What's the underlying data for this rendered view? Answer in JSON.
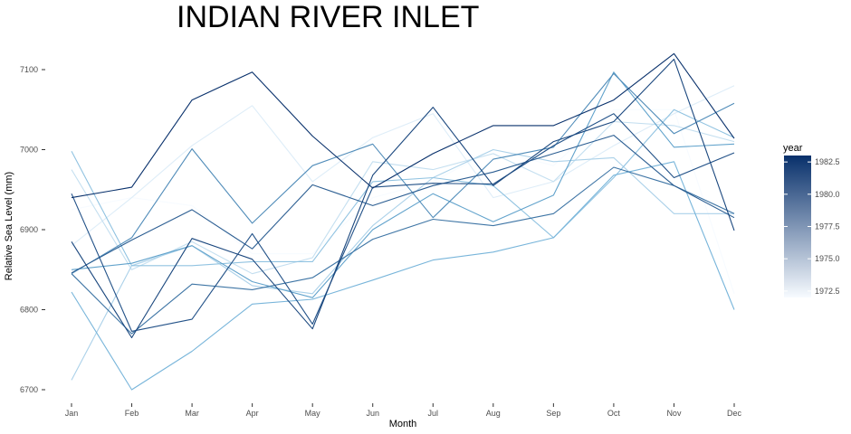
{
  "chart_data": {
    "type": "line",
    "title": "INDIAN RIVER INLET",
    "xlabel": "Month",
    "ylabel": "Relative Sea Level (mm)",
    "categories": [
      "Jan",
      "Feb",
      "Mar",
      "Apr",
      "May",
      "Jun",
      "Jul",
      "Aug",
      "Sep",
      "Oct",
      "Nov",
      "Dec"
    ],
    "y_ticks": [
      "6700",
      "6800",
      "6900",
      "7000",
      "7100"
    ],
    "ylim": [
      6685,
      7130
    ],
    "grid": false,
    "legend": {
      "title": "year",
      "position": "right",
      "range": [
        1972,
        1983
      ],
      "ticks": [
        "1972.5",
        "1975.0",
        "1977.5",
        "1980.0",
        "1982.5"
      ],
      "color_low": "#f7fbff",
      "color_high": "#08306b"
    },
    "series": [
      {
        "year": 1972,
        "values": [
          6925,
          6940,
          6930,
          6870,
          6870,
          6940,
          6960,
          7000,
          6980,
          7050,
          7050,
          6820
        ]
      },
      {
        "year": 1973,
        "values": [
          6880,
          6940,
          7005,
          7055,
          6960,
          7015,
          7045,
          6940,
          6960,
          7005,
          7045,
          7080
        ]
      },
      {
        "year": 1974,
        "values": [
          6975,
          6850,
          6885,
          6845,
          6865,
          6985,
          6975,
          6995,
          6960,
          7035,
          7030,
          7010
        ]
      },
      {
        "year": 1975,
        "values": [
          6712,
          6855,
          6880,
          6830,
          6820,
          6905,
          6965,
          7000,
          6985,
          6990,
          6920,
          6920
        ]
      },
      {
        "year": 1976,
        "values": [
          6998,
          6855,
          6855,
          6860,
          6860,
          6960,
          6965,
          6955,
          6890,
          6965,
          7050,
          7015
        ]
      },
      {
        "year": 1977,
        "values": [
          6822,
          6700,
          6748,
          6807,
          6813,
          6837,
          6862,
          6872,
          6890,
          6968,
          6985,
          6800
        ]
      },
      {
        "year": 1978,
        "values": [
          6850,
          6858,
          6880,
          6835,
          6815,
          6900,
          6945,
          6910,
          6943,
          7097,
          7003,
          7007
        ]
      },
      {
        "year": 1979,
        "values": [
          6845,
          6890,
          7001,
          6908,
          6980,
          7007,
          6915,
          6988,
          7003,
          7095,
          7020,
          7058
        ]
      },
      {
        "year": 1980,
        "values": [
          6845,
          6770,
          6832,
          6825,
          6840,
          6888,
          6913,
          6905,
          6920,
          6978,
          6955,
          6920
        ]
      },
      {
        "year": 1981,
        "values": [
          6846,
          6887,
          6925,
          6876,
          6956,
          6930,
          6955,
          6972,
          6995,
          7018,
          6955,
          6915
        ]
      },
      {
        "year": 1981.5,
        "values": [
          6945,
          6773,
          6788,
          6895,
          6782,
          6953,
          6958,
          6957,
          7005,
          7045,
          6965,
          6996
        ]
      },
      {
        "year": 1982,
        "values": [
          6885,
          6765,
          6889,
          6863,
          6776,
          6968,
          7053,
          6955,
          7010,
          7035,
          7113,
          6899
        ]
      },
      {
        "year": 1983,
        "values": [
          6940,
          6953,
          7062,
          7097,
          7017,
          6952,
          6995,
          7030,
          7030,
          7062,
          7120,
          7014
        ]
      }
    ]
  }
}
